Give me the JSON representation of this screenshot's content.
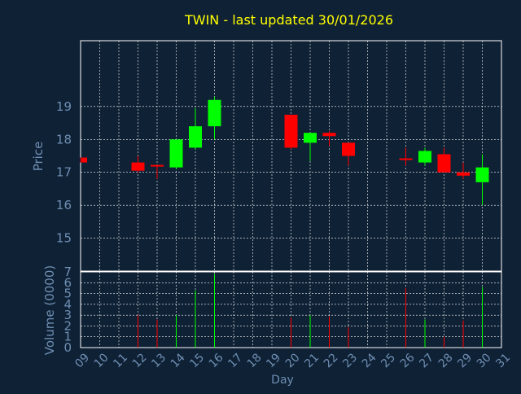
{
  "chart_data": {
    "type": "candlestick",
    "title": "TWIN - last updated 30/01/2026",
    "price_panel": {
      "ylabel": "Price",
      "ylim": [
        14,
        21
      ],
      "yticks": [
        "15",
        "16",
        "17",
        "18",
        "19"
      ],
      "grid": true
    },
    "volume_panel": {
      "ylabel": "Volume (0000)",
      "ylim": [
        0,
        7
      ],
      "yticks": [
        "0",
        "1",
        "2",
        "3",
        "4",
        "5",
        "6",
        "7"
      ],
      "grid": true
    },
    "xlabel": "Day",
    "xlim": [
      9,
      31
    ],
    "xticks": [
      "09",
      "10",
      "11",
      "12",
      "13",
      "14",
      "15",
      "16",
      "17",
      "18",
      "19",
      "20",
      "21",
      "22",
      "23",
      "24",
      "25",
      "26",
      "27",
      "28",
      "29",
      "30",
      "31"
    ],
    "candles": [
      {
        "day": 9,
        "open": 17.45,
        "close": 17.3,
        "high": 17.45,
        "low": 17.3,
        "volume": 0
      },
      {
        "day": 12,
        "open": 17.3,
        "close": 17.05,
        "high": 17.5,
        "low": 17.0,
        "volume": 3.0
      },
      {
        "day": 13,
        "open": 17.2,
        "close": 17.2,
        "high": 17.2,
        "low": 16.8,
        "volume": 2.6
      },
      {
        "day": 14,
        "open": 17.15,
        "close": 18.0,
        "high": 18.0,
        "low": 17.1,
        "volume": 3.0
      },
      {
        "day": 15,
        "open": 17.75,
        "close": 18.4,
        "high": 18.95,
        "low": 17.7,
        "volume": 5.3
      },
      {
        "day": 16,
        "open": 18.4,
        "close": 19.2,
        "high": 19.3,
        "low": 18.0,
        "volume": 6.8
      },
      {
        "day": 20,
        "open": 18.75,
        "close": 17.75,
        "high": 18.75,
        "low": 17.7,
        "volume": 2.8
      },
      {
        "day": 21,
        "open": 17.9,
        "close": 18.2,
        "high": 18.2,
        "low": 17.35,
        "volume": 3.0
      },
      {
        "day": 22,
        "open": 18.2,
        "close": 18.1,
        "high": 18.25,
        "low": 17.8,
        "volume": 2.9
      },
      {
        "day": 23,
        "open": 17.9,
        "close": 17.5,
        "high": 17.9,
        "low": 17.2,
        "volume": 1.9
      },
      {
        "day": 26,
        "open": 17.4,
        "close": 17.4,
        "high": 17.75,
        "low": 17.2,
        "volume": 5.5
      },
      {
        "day": 27,
        "open": 17.3,
        "close": 17.65,
        "high": 17.75,
        "low": 17.2,
        "volume": 2.6
      },
      {
        "day": 28,
        "open": 17.55,
        "close": 17.0,
        "high": 17.75,
        "low": 17.0,
        "volume": 1.0
      },
      {
        "day": 29,
        "open": 17.0,
        "close": 16.9,
        "high": 17.3,
        "low": 16.8,
        "volume": 2.5
      },
      {
        "day": 30,
        "open": 16.7,
        "close": 17.15,
        "high": 17.55,
        "low": 16.0,
        "volume": 5.6
      }
    ],
    "colors": {
      "background": "#0f2135",
      "up": "#00ff00",
      "down": "#ff0000",
      "title": "#ffff00",
      "axis_text": "#6f8fb3",
      "grid": "#ffffff"
    }
  }
}
